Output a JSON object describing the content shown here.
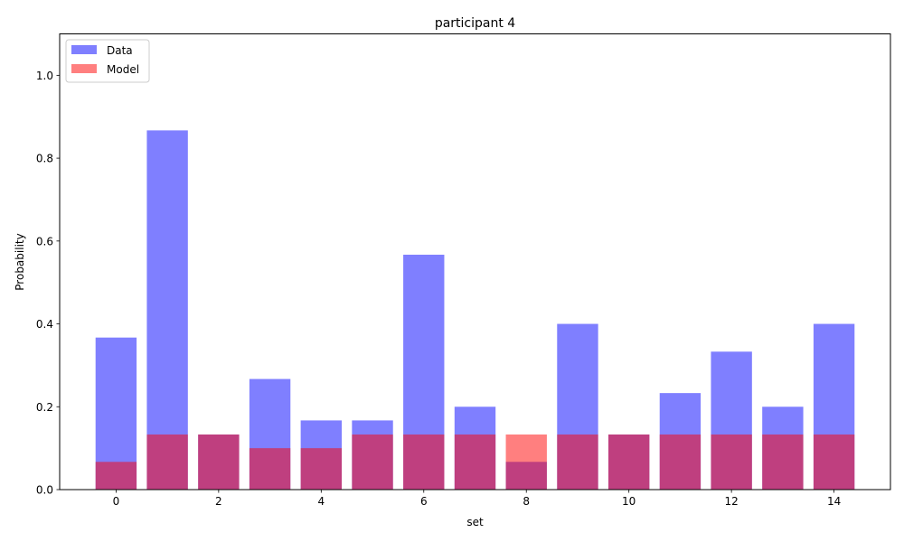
{
  "chart_data": {
    "type": "bar",
    "title": "participant 4",
    "xlabel": "set",
    "ylabel": "Probability",
    "x": [
      0,
      1,
      2,
      3,
      4,
      5,
      6,
      7,
      8,
      9,
      10,
      11,
      12,
      13,
      14
    ],
    "xticks": [
      0,
      2,
      4,
      6,
      8,
      10,
      12,
      14
    ],
    "yticks": [
      0.0,
      0.2,
      0.4,
      0.6,
      0.8,
      1.0
    ],
    "xlim": [
      -1.1,
      15.1
    ],
    "ylim": [
      0,
      1.1
    ],
    "series": [
      {
        "name": "Data",
        "color": "#0000ff",
        "alpha": 0.5,
        "values": [
          0.367,
          0.867,
          0.133,
          0.267,
          0.167,
          0.167,
          0.567,
          0.2,
          0.067,
          0.4,
          0.133,
          0.233,
          0.333,
          0.2,
          0.4
        ]
      },
      {
        "name": "Model",
        "color": "#ff0000",
        "alpha": 0.5,
        "values": [
          0.067,
          0.133,
          0.133,
          0.1,
          0.1,
          0.133,
          0.133,
          0.133,
          0.133,
          0.133,
          0.133,
          0.133,
          0.133,
          0.133,
          0.133
        ]
      }
    ],
    "legend_position": "top-left",
    "grid": false
  }
}
